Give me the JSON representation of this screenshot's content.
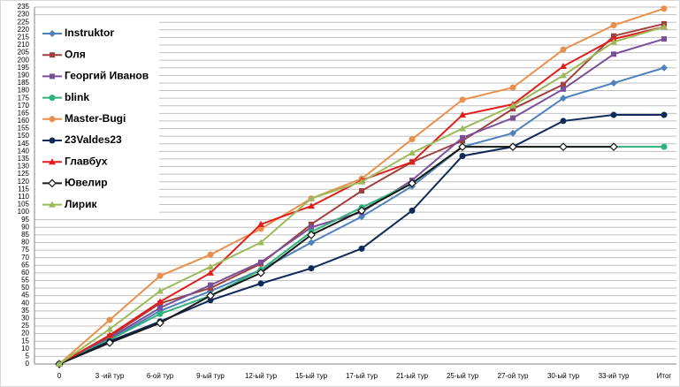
{
  "chart_data": {
    "type": "line",
    "categories": [
      "0",
      "3 -ий тур",
      "6-ой тур",
      "9-ый тур",
      "12-ый тур",
      "15-ый тур",
      "17-ый тур",
      "21-ый тур",
      "25-ый тур",
      "27-ой тур",
      "30-ый тур",
      "33-ий тур",
      "Итог"
    ],
    "series": [
      {
        "name": "Instruktor",
        "color": "#4f81bd",
        "marker": "diamond",
        "values": [
          0,
          16,
          35,
          48,
          62,
          80,
          97,
          117,
          143,
          152,
          175,
          185,
          195
        ]
      },
      {
        "name": "Оля",
        "color": "#a0413e",
        "marker": "square",
        "values": [
          0,
          18,
          40,
          50,
          66,
          92,
          114,
          133,
          147,
          168,
          184,
          216,
          224
        ]
      },
      {
        "name": "Георгий Иванов",
        "color": "#7a4f9a",
        "marker": "square",
        "values": [
          0,
          17,
          37,
          52,
          67,
          90,
          100,
          121,
          149,
          162,
          181,
          204,
          214
        ]
      },
      {
        "name": "blink",
        "color": "#2db37a",
        "marker": "circle",
        "values": [
          0,
          16,
          33,
          45,
          62,
          87,
          103,
          119,
          143,
          143,
          143,
          143,
          143
        ]
      },
      {
        "name": "Master-Bugi",
        "color": "#e8904c",
        "marker": "circle",
        "values": [
          0,
          29,
          58,
          72,
          89,
          109,
          122,
          148,
          174,
          182,
          207,
          223,
          234
        ]
      },
      {
        "name": "23Valdes23",
        "color": "#0f2a5a",
        "marker": "circle",
        "values": [
          0,
          15,
          28,
          42,
          53,
          63,
          76,
          101,
          137,
          143,
          160,
          164,
          164
        ]
      },
      {
        "name": "Главбух",
        "color": "#e31c1c",
        "marker": "triangle",
        "values": [
          0,
          19,
          41,
          60,
          92,
          104,
          121,
          133,
          164,
          171,
          196,
          214,
          222
        ]
      },
      {
        "name": "Ювелир",
        "color": "#1a1a1a",
        "marker": "hollow-diamond",
        "values": [
          0,
          14,
          27,
          45,
          60,
          85,
          101,
          119,
          143,
          143,
          143,
          143,
          null
        ]
      },
      {
        "name": "Лирик",
        "color": "#9bbb59",
        "marker": "triangle",
        "values": [
          0,
          23,
          48,
          64,
          80,
          109,
          120,
          139,
          155,
          170,
          190,
          212,
          222
        ]
      }
    ],
    "ylim": [
      0,
      235
    ],
    "yticks": [
      0,
      5,
      10,
      15,
      20,
      25,
      30,
      35,
      40,
      45,
      50,
      55,
      60,
      65,
      70,
      75,
      80,
      85,
      90,
      95,
      100,
      105,
      110,
      115,
      120,
      125,
      130,
      135,
      140,
      145,
      150,
      155,
      160,
      165,
      170,
      175,
      180,
      185,
      190,
      195,
      200,
      205,
      210,
      215,
      220,
      225,
      230,
      235
    ],
    "grid": true
  }
}
